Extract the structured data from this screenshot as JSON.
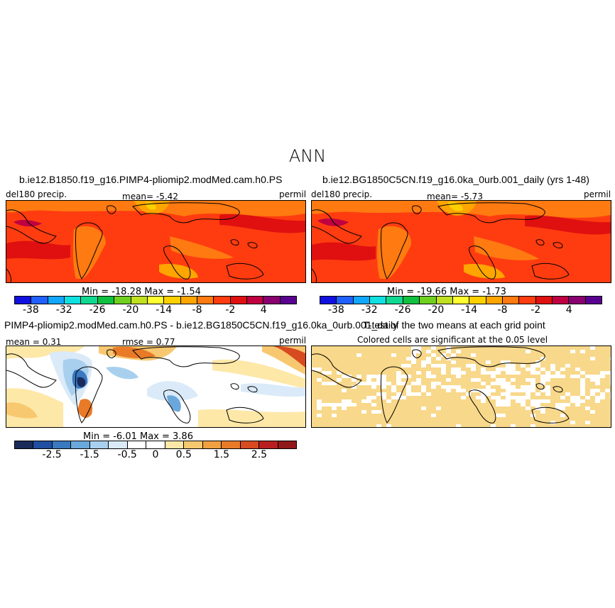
{
  "figure": {
    "title": "ANN"
  },
  "panels": {
    "top_left": {
      "title": "b.ie12.B1850.f19_g16.PIMP4-pliomip2.modMed.cam.h0.PS",
      "left_label": "del180  precip.",
      "mean_text": "mean=   -5.42",
      "right_label": "permil",
      "minmax": "Min =  -18.28  Max =   -1.54"
    },
    "top_right": {
      "title": "b.ie12.BG1850C5CN.f19_g16.0ka_0urb.001_daily (yrs 1-48)",
      "left_label": "del180  precip.",
      "mean_text": "mean=   -5.73",
      "right_label": "permil",
      "minmax": "Min =  -19.66  Max =   -1.73"
    },
    "bottom_left": {
      "title": "PIMP4-pliomip2.modMed.cam.h0.PS - b.ie12.BG1850C5CN.f19_g16.0ka_0urb.001_daily",
      "left_label": "mean =   0.31",
      "rmse_text": "rmse =    0.77",
      "right_label": "permil",
      "minmax": "Min =   -6.01  Max =    3.86"
    },
    "bottom_right": {
      "title": "T-test of the two means at each grid point",
      "subtitle": "Colored cells are significant at the 0.05 level"
    }
  },
  "chart_data": [
    {
      "type": "heatmap",
      "title": "b.ie12.B1850.f19_g16.PIMP4-pliomip2.modMed.cam.h0.PS",
      "variable": "del180 precip.",
      "units": "permil",
      "mean": -5.42,
      "min": -18.28,
      "max": -1.54,
      "colorbar_ticks": [
        "-38",
        "-32",
        "-26",
        "-20",
        "-14",
        "-8",
        "-2",
        "4"
      ],
      "colorbar_levels": [
        -41,
        -38,
        -35,
        -32,
        -29,
        -26,
        -23,
        -20,
        -17,
        -14,
        -11,
        -8,
        -5,
        -2,
        1,
        4,
        7
      ],
      "colors": [
        "#1010e0",
        "#2060ff",
        "#10a8ff",
        "#10e0e0",
        "#10d890",
        "#10c040",
        "#70d020",
        "#c0e020",
        "#ffff30",
        "#ffd000",
        "#ffa500",
        "#ff7a10",
        "#ff3c10",
        "#e01010",
        "#c00040",
        "#8a0070",
        "#5a0090"
      ]
    },
    {
      "type": "heatmap",
      "title": "b.ie12.BG1850C5CN.f19_g16.0ka_0urb.001_daily (yrs 1-48)",
      "variable": "del180 precip.",
      "units": "permil",
      "mean": -5.73,
      "min": -19.66,
      "max": -1.73,
      "colorbar_ticks": [
        "-38",
        "-32",
        "-26",
        "-20",
        "-14",
        "-8",
        "-2",
        "4"
      ]
    },
    {
      "type": "heatmap",
      "title": "PIMP4-pliomip2.modMed.cam.h0.PS - b.ie12.BG1850C5CN.f19_g16.0ka_0urb.001_daily",
      "units": "permil",
      "mean": 0.31,
      "rmse": 0.77,
      "min": -6.01,
      "max": 3.86,
      "colorbar_ticks": [
        "-2.5",
        "-1.5",
        "-0.5",
        "0",
        "0.5",
        "1.5",
        "2.5"
      ],
      "colors": [
        "#1a2a5a",
        "#204ea0",
        "#3a78c0",
        "#6aa8dc",
        "#a8d0ee",
        "#daeaf8",
        "#ffffff",
        "#ffffff",
        "#fde8a8",
        "#f8c870",
        "#f0a040",
        "#e87a28",
        "#d84a20",
        "#b82020",
        "#901818"
      ]
    },
    {
      "type": "heatmap",
      "title": "T-test of the two means at each grid point",
      "note": "Colored cells are significant at the 0.05 level",
      "colors": [
        "#f8d88a",
        "#ffffff"
      ]
    }
  ]
}
